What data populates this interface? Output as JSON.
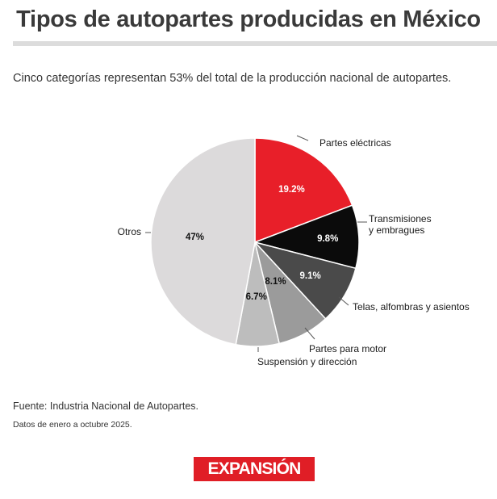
{
  "header": {
    "title": "Tipos de autopartes producidas en México"
  },
  "subtitle": "Cinco categorías representan 53% del total de la producción nacional de autopartes.",
  "footer": {
    "source": "Fuente: Industria Nacional de Autopartes.",
    "note": "Datos de enero a octubre 2025."
  },
  "brand": {
    "logo_text": "EXPANSIÓN",
    "color": "#e01e26"
  },
  "chart_data": {
    "type": "pie",
    "start": "12 o'clock",
    "direction": "clockwise",
    "slices": [
      {
        "category": "Partes eléctricas",
        "value": 19.2,
        "label": "19.2%",
        "color": "#e81f29",
        "label_color": "#ffffff",
        "label_bold": true
      },
      {
        "category": "Transmisiones y embragues",
        "value": 9.8,
        "label": "9.8%",
        "color": "#0b0b0b",
        "label_color": "#ffffff",
        "label_bold": true
      },
      {
        "category": "Telas, alfombras y asientos",
        "value": 9.1,
        "label": "9.1%",
        "color": "#4a4a4a",
        "label_color": "#ffffff",
        "label_bold": true
      },
      {
        "category": "Partes para motor",
        "value": 8.1,
        "label": "8.1%",
        "color": "#9b9b9b",
        "label_color": "#111111",
        "label_bold": true
      },
      {
        "category": "Suspensión y dirección",
        "value": 6.7,
        "label": "6.7%",
        "color": "#bdbdbd",
        "label_color": "#111111",
        "label_bold": true
      },
      {
        "category": "Otros",
        "value": 47,
        "label": "47%",
        "color": "#dcdadb",
        "label_color": "#111111",
        "label_bold": true
      }
    ],
    "unit": "%"
  }
}
